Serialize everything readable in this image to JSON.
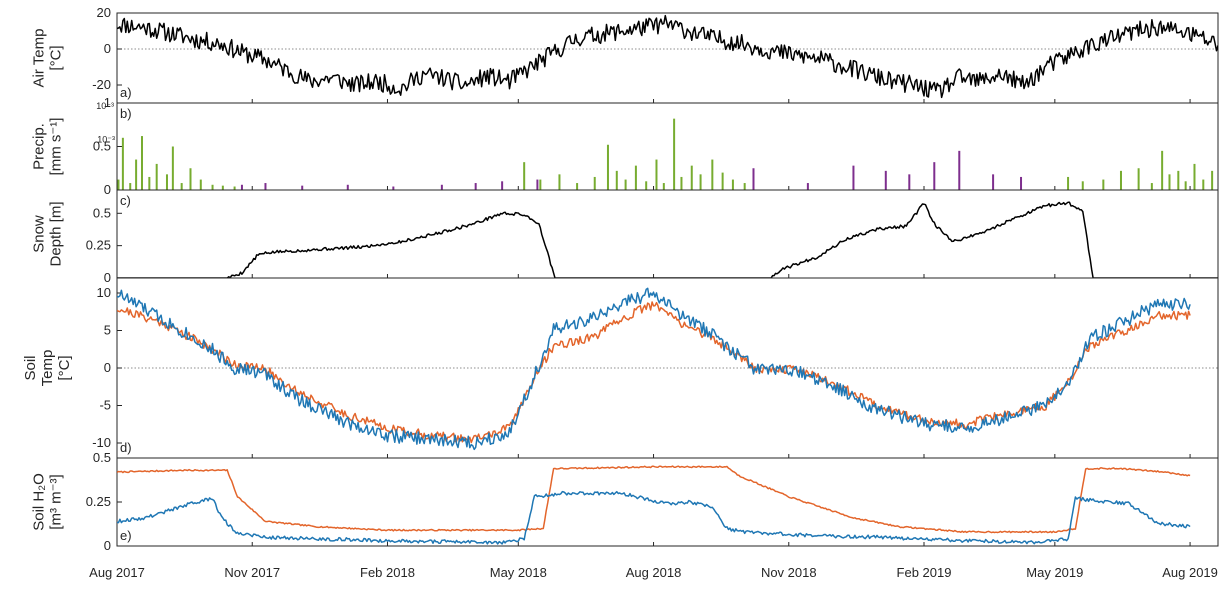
{
  "colors": {
    "black": "#000000",
    "blue": "#1f77b4",
    "orange": "#e3652b",
    "green": "#77ac30",
    "purple": "#7e2f8e",
    "zero_line": "#8c8c8c"
  },
  "x_axis": {
    "ticks": [
      {
        "date": "2017-08-01",
        "label": "Aug 2017"
      },
      {
        "date": "2017-11-01",
        "label": "Nov 2017"
      },
      {
        "date": "2018-02-01",
        "label": "Feb 2018"
      },
      {
        "date": "2018-05-01",
        "label": "May 2018"
      },
      {
        "date": "2018-08-01",
        "label": "Aug 2018"
      },
      {
        "date": "2018-11-01",
        "label": "Nov 2018"
      },
      {
        "date": "2019-02-01",
        "label": "Feb 2019"
      },
      {
        "date": "2019-05-01",
        "label": "May 2019"
      },
      {
        "date": "2019-08-01",
        "label": "Aug 2019"
      }
    ],
    "xlim": [
      "2017-08-01",
      "2019-08-20"
    ]
  },
  "chart_data": [
    {
      "type": "line",
      "panel": "a)",
      "ylabel_lines": [
        "Air Temp",
        "[°C]"
      ],
      "ylim": [
        -30,
        20
      ],
      "yticks": [
        "20",
        "0",
        "-20"
      ],
      "zero_line": true,
      "series": [
        {
          "color": "#000000",
          "x": [
            "2017-08-01",
            "2017-08-20",
            "2017-09-10",
            "2017-09-25",
            "2017-10-10",
            "2017-10-25",
            "2017-11-10",
            "2017-11-25",
            "2017-12-10",
            "2017-12-25",
            "2018-01-10",
            "2018-01-25",
            "2018-02-10",
            "2018-02-25",
            "2018-03-10",
            "2018-03-25",
            "2018-04-10",
            "2018-04-25",
            "2018-05-10",
            "2018-05-25",
            "2018-06-10",
            "2018-06-25",
            "2018-07-10",
            "2018-07-25",
            "2018-08-10",
            "2018-08-25",
            "2018-09-10",
            "2018-09-25",
            "2018-10-10",
            "2018-10-25",
            "2018-11-10",
            "2018-11-25",
            "2018-12-10",
            "2018-12-25",
            "2019-01-10",
            "2019-01-25",
            "2019-02-10",
            "2019-02-25",
            "2019-03-10",
            "2019-03-25",
            "2019-04-10",
            "2019-04-25",
            "2019-05-10",
            "2019-05-25",
            "2019-06-10",
            "2019-06-25",
            "2019-07-10",
            "2019-07-25",
            "2019-08-10",
            "2019-08-20"
          ],
          "y": [
            14,
            12,
            8,
            5,
            3,
            -2,
            -6,
            -12,
            -18,
            -16,
            -20,
            -18,
            -22,
            -14,
            -16,
            -20,
            -15,
            -18,
            -10,
            -2,
            6,
            8,
            10,
            12,
            14,
            10,
            6,
            4,
            1,
            -2,
            -4,
            -6,
            -10,
            -14,
            -18,
            -20,
            -24,
            -16,
            -18,
            -14,
            -20,
            -10,
            -4,
            2,
            6,
            10,
            12,
            10,
            6,
            2
          ],
          "noise_amp": 5,
          "noise_seed": 11
        }
      ]
    },
    {
      "type": "bar",
      "panel": "b)",
      "ylabel_lines": [
        "Precip.",
        "[mm s⁻¹]"
      ],
      "ylim": [
        0,
        0.001
      ],
      "yticks": [
        "1",
        "0.5",
        "0"
      ],
      "ytick_exponent": "10⁻³",
      "series": [
        {
          "color": "#77ac30",
          "x": [
            "2017-08-02",
            "2017-08-05",
            "2017-08-10",
            "2017-08-14",
            "2017-08-18",
            "2017-08-23",
            "2017-08-28",
            "2017-09-04",
            "2017-09-08",
            "2017-09-14",
            "2017-09-20",
            "2017-09-27",
            "2017-10-05",
            "2017-10-12",
            "2017-10-20",
            "2018-05-05",
            "2018-05-16",
            "2018-05-29",
            "2018-06-10",
            "2018-06-22",
            "2018-07-01",
            "2018-07-07",
            "2018-07-13",
            "2018-07-20",
            "2018-07-27",
            "2018-08-03",
            "2018-08-08",
            "2018-08-15",
            "2018-08-20",
            "2018-08-27",
            "2018-09-02",
            "2018-09-10",
            "2018-09-17",
            "2018-09-24",
            "2018-10-02",
            "2019-05-10",
            "2019-05-20",
            "2019-06-03",
            "2019-06-15",
            "2019-06-27",
            "2019-07-06",
            "2019-07-13",
            "2019-07-18",
            "2019-07-24",
            "2019-07-29",
            "2019-08-04",
            "2019-08-10",
            "2019-08-16"
          ],
          "values": [
            0.00012,
            0.0006,
            8e-05,
            0.00035,
            0.00062,
            0.00015,
            0.0003,
            0.00018,
            0.0005,
            8e-05,
            0.00025,
            0.00012,
            6e-05,
            5e-05,
            4e-05,
            0.00032,
            0.00012,
            0.00018,
            8e-05,
            0.00015,
            0.00052,
            0.00022,
            0.00012,
            0.00028,
            0.0001,
            0.00035,
            8e-05,
            0.00082,
            0.00015,
            0.00028,
            0.00018,
            0.00035,
            0.0002,
            0.00012,
            8e-05,
            0.00015,
            0.0001,
            0.00012,
            0.00022,
            0.00025,
            8e-05,
            0.00045,
            0.00018,
            0.00022,
            0.0001,
            0.0003,
            0.00012,
            0.00022
          ]
        },
        {
          "color": "#7e2f8e",
          "x": [
            "2017-10-25",
            "2017-11-10",
            "2017-12-05",
            "2018-01-05",
            "2018-02-05",
            "2018-03-10",
            "2018-04-02",
            "2018-04-20",
            "2018-05-14",
            "2018-10-08",
            "2018-11-14",
            "2018-12-15",
            "2019-01-06",
            "2019-01-22",
            "2019-02-08",
            "2019-02-25",
            "2019-03-20",
            "2019-04-08"
          ],
          "values": [
            6e-05,
            8e-05,
            5e-05,
            6e-05,
            4e-05,
            6e-05,
            8e-05,
            0.0001,
            0.00012,
            0.00025,
            8e-05,
            0.00028,
            0.00022,
            0.00018,
            0.00032,
            0.00045,
            0.00018,
            0.00015
          ]
        }
      ]
    },
    {
      "type": "line",
      "panel": "c)",
      "ylabel_lines": [
        "Snow",
        "Depth [m]"
      ],
      "ylim": [
        0,
        0.68
      ],
      "yticks": [
        "0.5",
        "0.25",
        "0"
      ],
      "series": [
        {
          "color": "#000000",
          "x": [
            "2017-08-01",
            "2017-10-15",
            "2017-10-25",
            "2017-11-05",
            "2017-11-15",
            "2017-12-15",
            "2018-01-15",
            "2018-02-10",
            "2018-03-05",
            "2018-04-01",
            "2018-04-20",
            "2018-05-05",
            "2018-05-15",
            "2018-05-22",
            "2018-05-26",
            "2018-10-20",
            "2018-10-28",
            "2018-11-20",
            "2018-12-10",
            "2019-01-01",
            "2019-01-20",
            "2019-02-01",
            "2019-02-05",
            "2019-02-08",
            "2019-02-20",
            "2019-03-15",
            "2019-04-01",
            "2019-04-25",
            "2019-05-10",
            "2019-05-20",
            "2019-05-27",
            "2019-08-20"
          ],
          "y": [
            0,
            0,
            0.04,
            0.18,
            0.2,
            0.22,
            0.24,
            0.28,
            0.34,
            0.42,
            0.5,
            0.49,
            0.42,
            0.15,
            0,
            0,
            0.07,
            0.16,
            0.3,
            0.38,
            0.4,
            0.58,
            0.48,
            0.42,
            0.28,
            0.36,
            0.45,
            0.56,
            0.58,
            0.52,
            0,
            0
          ],
          "noise_amp": 0.012,
          "noise_seed": 5
        }
      ]
    },
    {
      "type": "line",
      "panel": "d)",
      "ylabel_lines": [
        "Soil",
        "Temp",
        "[°C]"
      ],
      "ylim": [
        -12,
        12
      ],
      "yticks": [
        "10",
        "5",
        "0",
        "-5",
        "-10"
      ],
      "zero_line": true,
      "series": [
        {
          "color": "#e3652b",
          "x": [
            "2017-08-01",
            "2017-09-01",
            "2017-10-01",
            "2017-10-20",
            "2017-11-10",
            "2017-12-01",
            "2018-01-01",
            "2018-02-01",
            "2018-03-01",
            "2018-04-01",
            "2018-04-25",
            "2018-05-10",
            "2018-05-25",
            "2018-06-20",
            "2018-07-15",
            "2018-08-01",
            "2018-08-20",
            "2018-09-10",
            "2018-09-25",
            "2018-10-10",
            "2018-11-10",
            "2018-12-01",
            "2019-01-01",
            "2019-02-01",
            "2019-03-01",
            "2019-04-01",
            "2019-04-25",
            "2019-05-10",
            "2019-05-25",
            "2019-06-20",
            "2019-07-10",
            "2019-08-01"
          ],
          "y": [
            8,
            6,
            3,
            0.5,
            -0.2,
            -3,
            -6,
            -8,
            -9,
            -9.5,
            -8,
            -2,
            3,
            4,
            7,
            8.5,
            6,
            4,
            2,
            0,
            -0.3,
            -2,
            -5,
            -7,
            -7.5,
            -6,
            -5,
            -2,
            3,
            5,
            7,
            7
          ],
          "noise_amp": 0.6,
          "noise_seed": 21
        },
        {
          "color": "#1f77b4",
          "x": [
            "2017-08-01",
            "2017-09-01",
            "2017-10-01",
            "2017-10-20",
            "2017-11-10",
            "2017-12-01",
            "2018-01-01",
            "2018-02-01",
            "2018-03-01",
            "2018-04-01",
            "2018-04-25",
            "2018-05-10",
            "2018-05-25",
            "2018-06-20",
            "2018-07-15",
            "2018-08-01",
            "2018-08-20",
            "2018-09-10",
            "2018-09-25",
            "2018-10-10",
            "2018-11-10",
            "2018-12-01",
            "2019-01-01",
            "2019-02-01",
            "2019-03-01",
            "2019-04-01",
            "2019-04-25",
            "2019-05-10",
            "2019-05-25",
            "2019-06-20",
            "2019-07-10",
            "2019-08-01"
          ],
          "y": [
            10,
            6.5,
            3,
            0,
            -0.8,
            -4,
            -7,
            -9,
            -9.5,
            -10,
            -8.5,
            -2,
            5,
            6.5,
            9,
            10,
            7,
            4.5,
            2,
            -0.2,
            -0.6,
            -2.5,
            -5.5,
            -7.5,
            -8,
            -6.5,
            -5,
            -2,
            4,
            6.5,
            8.5,
            8.5
          ],
          "noise_amp": 0.9,
          "noise_seed": 33
        }
      ]
    },
    {
      "type": "line",
      "panel": "e)",
      "ylabel_lines": [
        "Soil H₂O",
        "[m³ m⁻³]"
      ],
      "ylim": [
        0,
        0.5
      ],
      "yticks": [
        "0.5",
        "0.25",
        "0"
      ],
      "series": [
        {
          "color": "#e3652b",
          "x": [
            "2017-08-01",
            "2017-09-15",
            "2017-10-15",
            "2017-10-22",
            "2017-11-10",
            "2017-12-15",
            "2018-02-01",
            "2018-05-01",
            "2018-05-18",
            "2018-05-25",
            "2018-06-01",
            "2018-08-01",
            "2018-09-20",
            "2018-09-28",
            "2018-11-01",
            "2018-12-15",
            "2019-01-15",
            "2019-03-01",
            "2019-05-01",
            "2019-05-15",
            "2019-05-22",
            "2019-06-15",
            "2019-07-15",
            "2019-08-01"
          ],
          "y": [
            0.42,
            0.43,
            0.43,
            0.28,
            0.14,
            0.11,
            0.09,
            0.09,
            0.1,
            0.44,
            0.44,
            0.45,
            0.45,
            0.4,
            0.28,
            0.16,
            0.11,
            0.08,
            0.08,
            0.1,
            0.44,
            0.44,
            0.42,
            0.4
          ],
          "noise_amp": 0.004,
          "noise_seed": 7
        },
        {
          "color": "#1f77b4",
          "x": [
            "2017-08-01",
            "2017-08-20",
            "2017-09-20",
            "2017-10-05",
            "2017-10-10",
            "2017-10-20",
            "2017-11-10",
            "2017-12-20",
            "2018-02-01",
            "2018-04-20",
            "2018-05-05",
            "2018-05-12",
            "2018-06-01",
            "2018-07-10",
            "2018-08-10",
            "2018-08-25",
            "2018-09-10",
            "2018-09-20",
            "2018-10-01",
            "2018-11-15",
            "2019-01-01",
            "2019-03-01",
            "2019-04-20",
            "2019-05-10",
            "2019-05-15",
            "2019-06-20",
            "2019-07-10",
            "2019-08-01"
          ],
          "y": [
            0.14,
            0.16,
            0.24,
            0.27,
            0.18,
            0.08,
            0.05,
            0.04,
            0.03,
            0.02,
            0.04,
            0.28,
            0.3,
            0.3,
            0.24,
            0.25,
            0.22,
            0.1,
            0.08,
            0.06,
            0.05,
            0.03,
            0.02,
            0.04,
            0.27,
            0.24,
            0.13,
            0.11
          ],
          "noise_amp": 0.01,
          "noise_seed": 9
        }
      ]
    }
  ]
}
